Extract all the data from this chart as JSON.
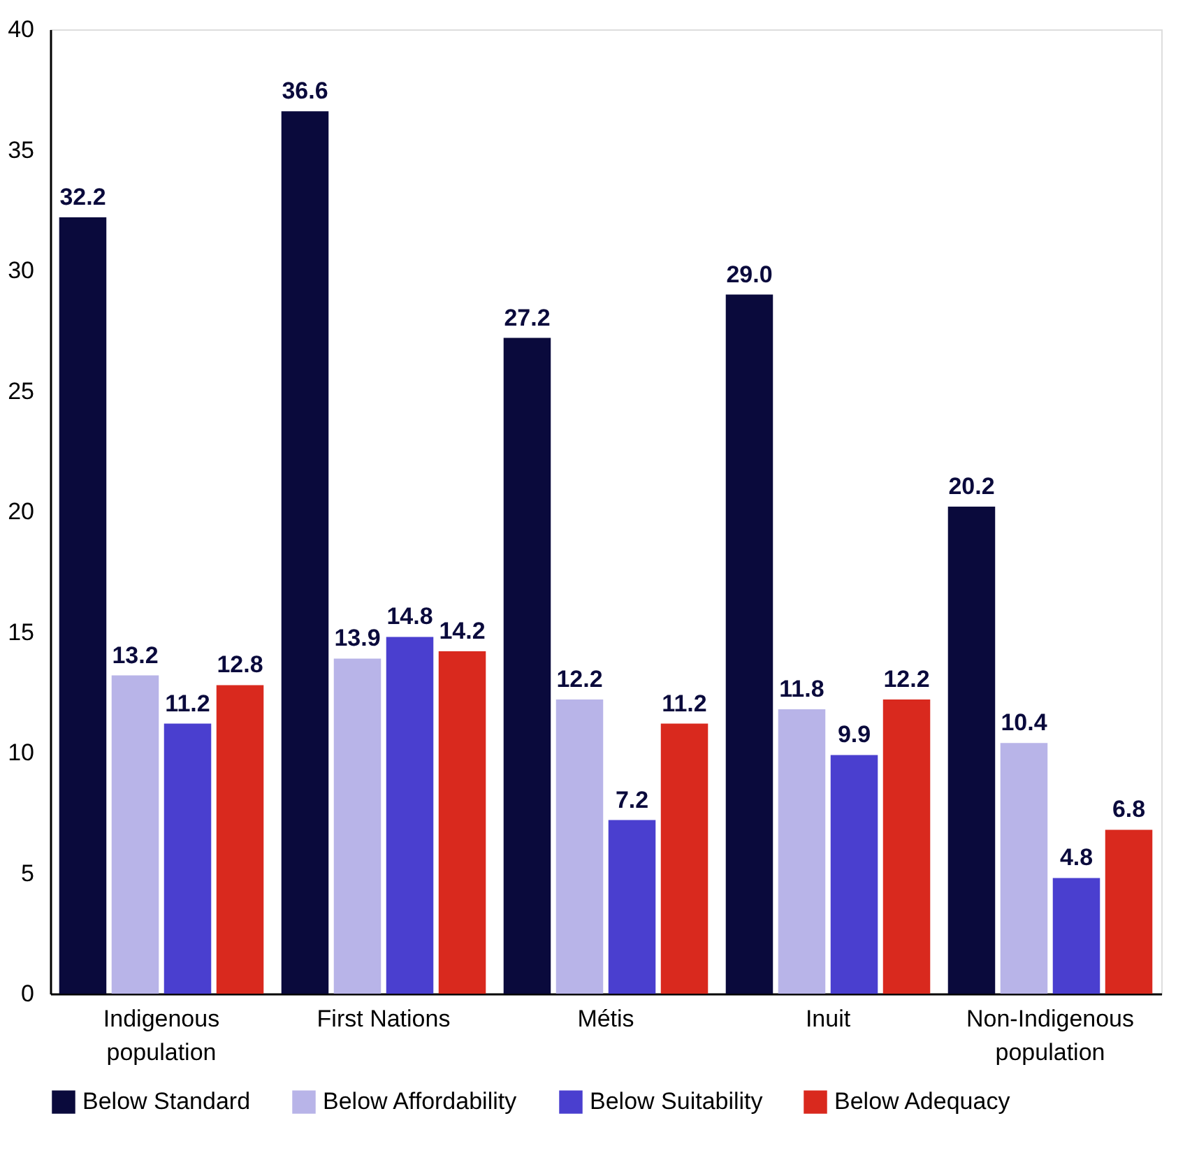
{
  "chart_data": {
    "type": "bar",
    "categories": [
      "Indigenous population",
      "First Nations",
      "Métis",
      "Inuit",
      "Non-Indigenous population"
    ],
    "series": [
      {
        "name": "Below Standard",
        "color": "#0a0a3c",
        "values": [
          32.2,
          36.6,
          27.2,
          29.0,
          20.2
        ],
        "value_labels": [
          "32.2",
          "36.6",
          "27.2",
          "29.0",
          "20.2"
        ]
      },
      {
        "name": "Below Affordability",
        "color": "#b8b4e8",
        "values": [
          13.2,
          13.9,
          12.2,
          11.8,
          10.4
        ],
        "value_labels": [
          "13.2",
          "13.9",
          "12.2",
          "11.8",
          "10.4"
        ]
      },
      {
        "name": "Below Suitability",
        "color": "#4a3fcf",
        "values": [
          11.2,
          14.8,
          7.2,
          9.9,
          4.8
        ],
        "value_labels": [
          "11.2",
          "14.8",
          "7.2",
          "9.9",
          "4.8"
        ]
      },
      {
        "name": "Below Adequacy",
        "color": "#d9291e",
        "values": [
          12.8,
          14.2,
          11.2,
          12.2,
          6.8
        ],
        "value_labels": [
          "12.8",
          "14.2",
          "11.2",
          "12.2",
          "6.8"
        ]
      }
    ],
    "ylim": [
      0,
      40
    ],
    "yticks": [
      0,
      5,
      10,
      15,
      20,
      25,
      30,
      35,
      40
    ],
    "grid": false,
    "legend": "bottom"
  }
}
